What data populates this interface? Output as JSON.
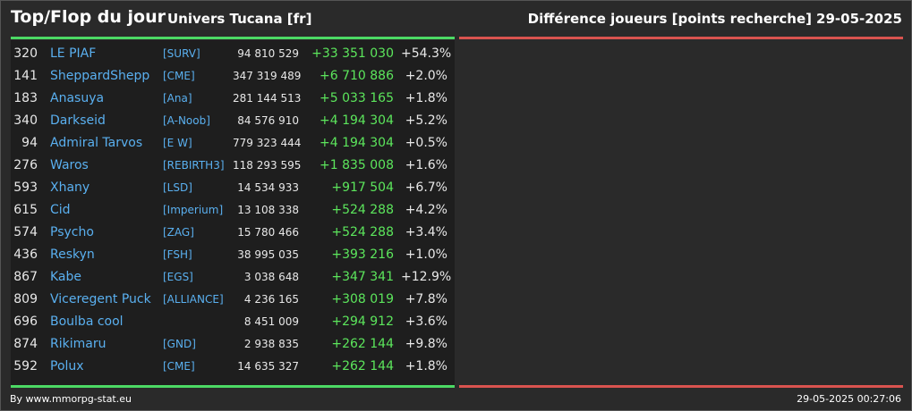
{
  "header": {
    "title": "Top/Flop du jour",
    "universe": "Univers Tucana [fr]",
    "ranking_type": "Différence joueurs [points recherche]",
    "date": "29-05-2025"
  },
  "colors": {
    "top_accent": "#4cd964",
    "flop_accent": "#d9534f",
    "name_link": "#5ab0f0",
    "positive_diff": "#5ce65c"
  },
  "top": {
    "rows": [
      {
        "rank": "320",
        "name": "LE PIAF",
        "alliance": "[SURV]",
        "points": "94 810 529",
        "diff": "+33 351 030",
        "pct": "+54.3%"
      },
      {
        "rank": "141",
        "name": "SheppardShepp",
        "alliance": "[CME]",
        "points": "347 319 489",
        "diff": "+6 710 886",
        "pct": "+2.0%"
      },
      {
        "rank": "183",
        "name": "Anasuya",
        "alliance": "[Ana]",
        "points": "281 144 513",
        "diff": "+5 033 165",
        "pct": "+1.8%"
      },
      {
        "rank": "340",
        "name": "Darkseid",
        "alliance": "[A-Noob]",
        "points": "84 576 910",
        "diff": "+4 194 304",
        "pct": "+5.2%"
      },
      {
        "rank": "94",
        "name": "Admiral Tarvos",
        "alliance": "[E W]",
        "points": "779 323 444",
        "diff": "+4 194 304",
        "pct": "+0.5%"
      },
      {
        "rank": "276",
        "name": "Waros",
        "alliance": "[REBIRTH3]",
        "points": "118 293 595",
        "diff": "+1 835 008",
        "pct": "+1.6%"
      },
      {
        "rank": "593",
        "name": "Xhany",
        "alliance": "[LSD]",
        "points": "14 534 933",
        "diff": "+917 504",
        "pct": "+6.7%"
      },
      {
        "rank": "615",
        "name": "Cid",
        "alliance": "[Imperium]",
        "points": "13 108 338",
        "diff": "+524 288",
        "pct": "+4.2%"
      },
      {
        "rank": "574",
        "name": "Psycho",
        "alliance": "[ZAG]",
        "points": "15 780 466",
        "diff": "+524 288",
        "pct": "+3.4%"
      },
      {
        "rank": "436",
        "name": "Reskyn",
        "alliance": "[FSH]",
        "points": "38 995 035",
        "diff": "+393 216",
        "pct": "+1.0%"
      },
      {
        "rank": "867",
        "name": "Kabe",
        "alliance": "[EGS]",
        "points": "3 038 648",
        "diff": "+347 341",
        "pct": "+12.9%"
      },
      {
        "rank": "809",
        "name": "Viceregent Puck",
        "alliance": "[ALLIANCE]",
        "points": "4 236 165",
        "diff": "+308 019",
        "pct": "+7.8%"
      },
      {
        "rank": "696",
        "name": "Boulba cool",
        "alliance": "",
        "points": "8 451 009",
        "diff": "+294 912",
        "pct": "+3.6%"
      },
      {
        "rank": "874",
        "name": "Rikimaru",
        "alliance": "[GND]",
        "points": "2 938 835",
        "diff": "+262 144",
        "pct": "+9.8%"
      },
      {
        "rank": "592",
        "name": "Polux",
        "alliance": "[CME]",
        "points": "14 635 327",
        "diff": "+262 144",
        "pct": "+1.8%"
      }
    ]
  },
  "footer": {
    "credit": "By www.mmorpg-stat.eu",
    "timestamp": "29-05-2025 00:27:06"
  }
}
